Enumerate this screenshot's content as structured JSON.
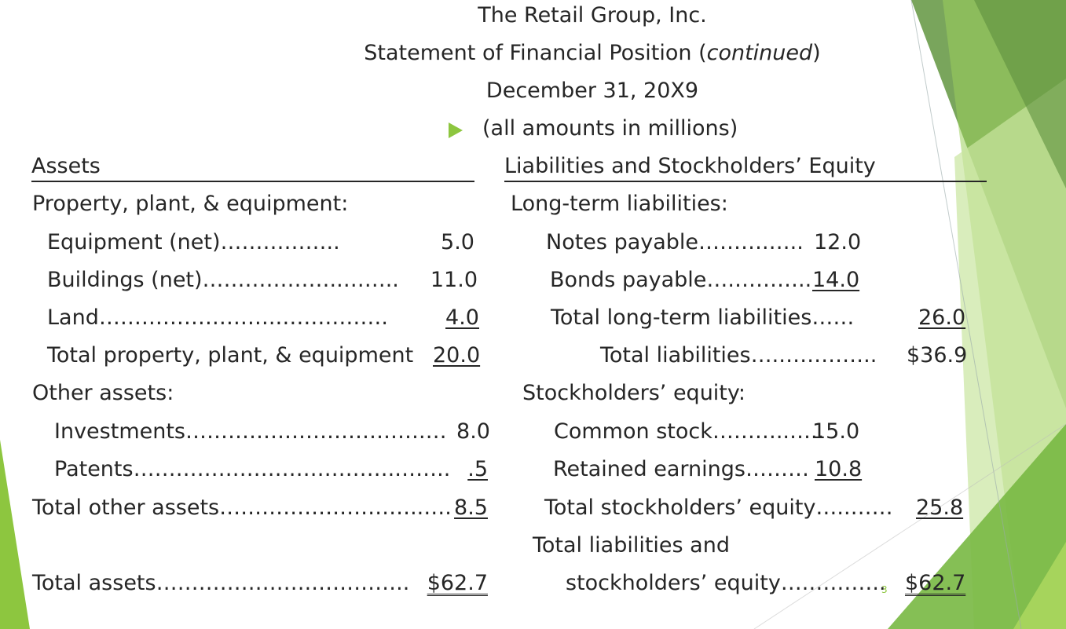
{
  "header": {
    "company": "The Retail Group, Inc.",
    "statement_title": "Statement of Financial Position (",
    "statement_continued": "continued",
    "statement_close": ")",
    "date": "December 31, 20X9",
    "note": "(all amounts in millions)"
  },
  "assets": {
    "heading": "Assets",
    "ppe_heading": "Property, plant, & equipment:",
    "ppe_items": [
      {
        "label": "Equipment (net)……………..",
        "value": "5.0"
      },
      {
        "label": "Buildings (net)………………..……..",
        "value": "11.0"
      },
      {
        "label": "Land…………………….…………….",
        "value": "4.0"
      }
    ],
    "ppe_total": {
      "label": "Total property, plant, & equipment",
      "value": "20.0"
    },
    "other_heading": "Other assets:",
    "other_items": [
      {
        "label": "Investments…………………………….…",
        "value": "8.0"
      },
      {
        "label": "Patents……………………………….……..",
        "value": ".5"
      }
    ],
    "other_total": {
      "label": "Total other assets………………………..….",
      "value": "8.5"
    },
    "total": {
      "label": "Total assets………………….…………..",
      "value": "$62.7"
    }
  },
  "liabilities": {
    "heading": "Liabilities and Stockholders’ Equity",
    "lt_heading": "Long-term liabilities:",
    "lt_items": [
      {
        "label": "Notes payable……….…..",
        "value": "12.0"
      },
      {
        "label": "Bonds payable….………..",
        "value": "14.0"
      }
    ],
    "lt_total": {
      "label": "Total long-term liabilities……",
      "value": "26.0"
    },
    "total_liabilities": {
      "label": "Total liabilities….…………..",
      "value": "$36.9"
    },
    "equity_heading": "Stockholders’ equity:",
    "equity_items": [
      {
        "label": "Common stock………..….. ",
        "value": "15.0"
      },
      {
        "label": "Retained earnings………",
        "value": "10.8"
      }
    ],
    "equity_total": {
      "label": "Total stockholders’ equity…..……",
      "value": "25.8"
    },
    "grand_total_line1": "Total liabilities and",
    "grand_total_line2": "stockholders’ equity….……….. ",
    "grand_total_value": "$62.7"
  },
  "page_number": "3",
  "colors": {
    "accent": "#8dc63f",
    "text": "#262626"
  }
}
